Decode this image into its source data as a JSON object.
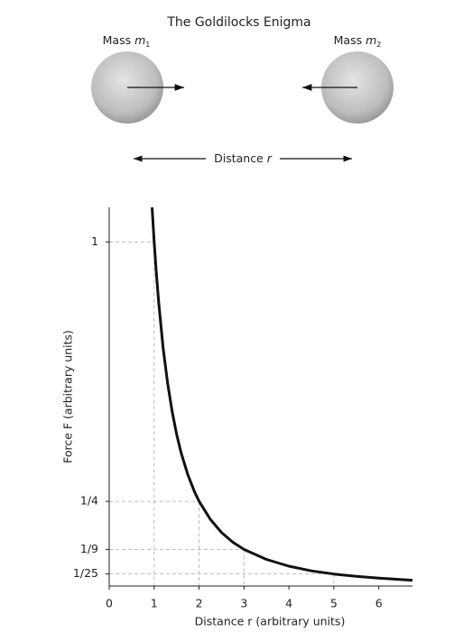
{
  "title": "The Goldilocks Enigma",
  "diagram": {
    "masses": [
      {
        "label": "Mass",
        "symbol": "m",
        "subscript": "1"
      },
      {
        "label": "Mass",
        "symbol": "m",
        "subscript": "2"
      }
    ],
    "distance_label": "Distance",
    "distance_symbol": "r"
  },
  "chart_data": {
    "type": "line",
    "xlabel": "Distance r (arbitrary units)",
    "ylabel": "Force F (arbitrary units)",
    "xlim": [
      0,
      6.75
    ],
    "ylim": [
      0,
      1.1
    ],
    "xticks": [
      0,
      1,
      2,
      3,
      4,
      5,
      6
    ],
    "yticks": [
      1,
      {
        "value": 0.25,
        "label": "1/4"
      },
      {
        "value": 0.1111,
        "label": "1/9"
      },
      {
        "value": 0.04,
        "label": "1/25"
      }
    ],
    "series": [
      {
        "color": "#111111",
        "x": [
          0.954,
          1,
          1.05,
          1.1,
          1.2,
          1.3,
          1.4,
          1.5,
          1.6,
          1.75,
          1.9,
          2,
          2.25,
          2.5,
          2.75,
          3,
          3.5,
          4,
          4.5,
          5,
          5.5,
          6,
          6.75
        ],
        "values": [
          1.1,
          1,
          0.907,
          0.826,
          0.694,
          0.592,
          0.51,
          0.444,
          0.391,
          0.327,
          0.277,
          0.25,
          0.198,
          0.16,
          0.132,
          0.111,
          0.082,
          0.0625,
          0.049,
          0.04,
          0.033,
          0.028,
          0.022
        ]
      }
    ],
    "guides": [
      {
        "x": 1,
        "y": 1
      },
      {
        "x": 2,
        "y": 0.25
      },
      {
        "x": 3,
        "y": 0.1111
      },
      {
        "x": 5,
        "y": 0.04
      }
    ]
  }
}
